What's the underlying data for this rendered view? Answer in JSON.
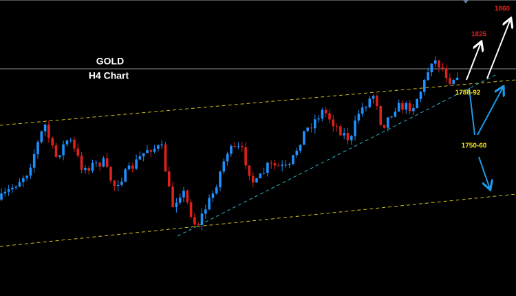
{
  "header": {
    "title": "GOLD",
    "subtitle": "H4 Chart"
  },
  "annotations": {
    "target_high": "1860",
    "target_mid": "1825",
    "support_upper": "1788-92",
    "support_lower": "1750-60"
  }
}
